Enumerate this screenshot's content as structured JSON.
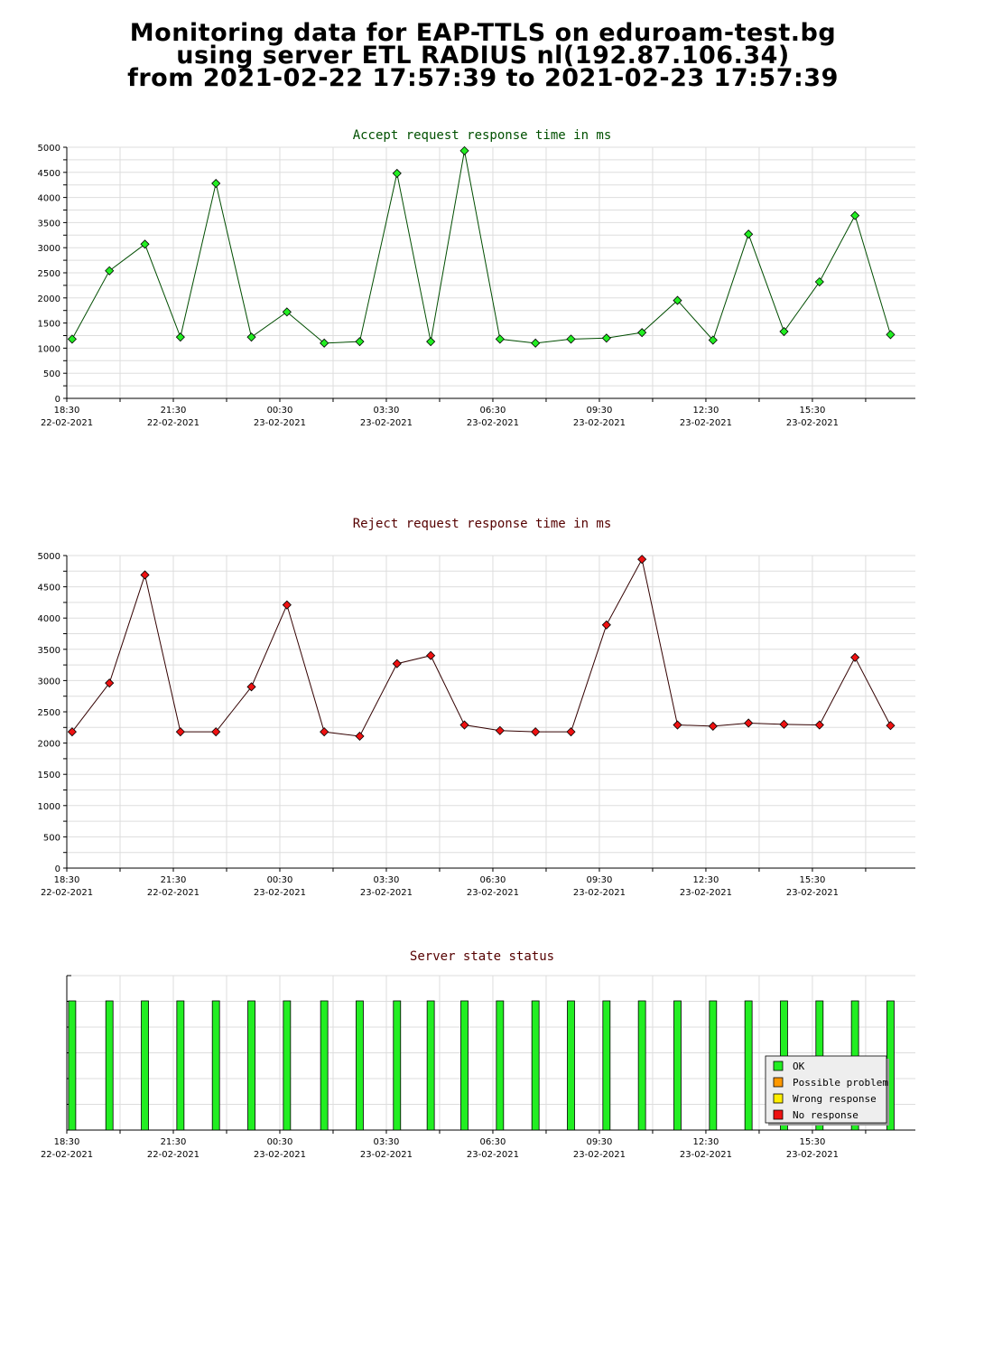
{
  "page": {
    "title_line1": "Monitoring data for EAP-TTLS on eduroam-test.bg",
    "title_line2": "using server ETL RADIUS nl(192.87.106.34)",
    "title_line3": "from 2021-02-22 17:57:39 to 2021-02-23 17:57:39"
  },
  "colors": {
    "accept_marker": "#22ee22",
    "accept_line": "#004d00",
    "accept_title": "#005000",
    "reject_marker": "#ee1111",
    "reject_line": "#330000",
    "reject_title": "#550000",
    "status_title": "#550000",
    "ok": "#22ee22",
    "possible_problem": "#ff9900",
    "wrong_response": "#ffee00",
    "no_response": "#ee1111",
    "grid": "#dddddd"
  },
  "x_axis": {
    "range_hours": [
      0,
      23.9
    ],
    "tick_labels": [
      {
        "time": "18:30",
        "date": "22-02-2021",
        "h": 0
      },
      {
        "time": "21:30",
        "date": "22-02-2021",
        "h": 3
      },
      {
        "time": "00:30",
        "date": "23-02-2021",
        "h": 6
      },
      {
        "time": "03:30",
        "date": "23-02-2021",
        "h": 9
      },
      {
        "time": "06:30",
        "date": "23-02-2021",
        "h": 12
      },
      {
        "time": "09:30",
        "date": "23-02-2021",
        "h": 15
      },
      {
        "time": "12:30",
        "date": "23-02-2021",
        "h": 18
      },
      {
        "time": "15:30",
        "date": "23-02-2021",
        "h": 21
      }
    ]
  },
  "chart_data": [
    {
      "type": "line",
      "title": "Accept request response time in ms",
      "ylim": [
        0,
        5000
      ],
      "yticks": [
        "0",
        "500",
        "1000",
        "1500",
        "2000",
        "2500",
        "3000",
        "3500",
        "4000",
        "4500",
        "5000"
      ],
      "grid": true,
      "series": [
        {
          "x": [
            0.15,
            1.2,
            2.2,
            3.2,
            4.2,
            5.2,
            6.2,
            7.25,
            8.25,
            9.3,
            10.25,
            11.2,
            12.2,
            13.2,
            14.2,
            15.2,
            16.2,
            17.2,
            18.2,
            19.2,
            20.2,
            21.2,
            22.2,
            23.2
          ],
          "values": [
            1180,
            2540,
            3070,
            1220,
            4280,
            1220,
            1720,
            1100,
            1130,
            4480,
            1130,
            4930,
            1180,
            1100,
            1180,
            1200,
            1310,
            1950,
            1160,
            3270,
            1330,
            2320,
            3640,
            1270
          ]
        }
      ]
    },
    {
      "type": "line",
      "title": "Reject request response time in ms",
      "ylim": [
        0,
        5000
      ],
      "yticks": [
        "0",
        "500",
        "1000",
        "1500",
        "2000",
        "2500",
        "3000",
        "3500",
        "4000",
        "4500",
        "5000"
      ],
      "grid": true,
      "series": [
        {
          "x": [
            0.15,
            1.2,
            2.2,
            3.2,
            4.2,
            5.2,
            6.2,
            7.25,
            8.25,
            9.3,
            10.25,
            11.2,
            12.2,
            13.2,
            14.2,
            15.2,
            16.2,
            17.2,
            18.2,
            19.2,
            20.2,
            21.2,
            22.2,
            23.2
          ],
          "values": [
            2180,
            2960,
            4690,
            2180,
            2180,
            2900,
            4210,
            2180,
            2110,
            3270,
            3400,
            2290,
            2200,
            2180,
            2180,
            3890,
            4940,
            2290,
            2270,
            2320,
            2300,
            2290,
            3370,
            2280
          ]
        }
      ]
    },
    {
      "type": "bar",
      "title": "Server state status",
      "x": [
        0.15,
        1.2,
        2.2,
        3.2,
        4.2,
        5.2,
        6.2,
        7.25,
        8.25,
        9.3,
        10.25,
        11.2,
        12.2,
        13.2,
        14.2,
        15.2,
        16.2,
        17.2,
        18.2,
        19.2,
        20.2,
        21.2,
        22.2,
        23.2
      ],
      "status": [
        "OK",
        "OK",
        "OK",
        "OK",
        "OK",
        "OK",
        "OK",
        "OK",
        "OK",
        "OK",
        "OK",
        "OK",
        "OK",
        "OK",
        "OK",
        "OK",
        "OK",
        "OK",
        "OK",
        "OK",
        "OK",
        "OK",
        "OK",
        "OK"
      ],
      "legend": [
        "OK",
        "Possible problem",
        "Wrong response",
        "No response"
      ],
      "legend_position": "bottom-right"
    }
  ]
}
